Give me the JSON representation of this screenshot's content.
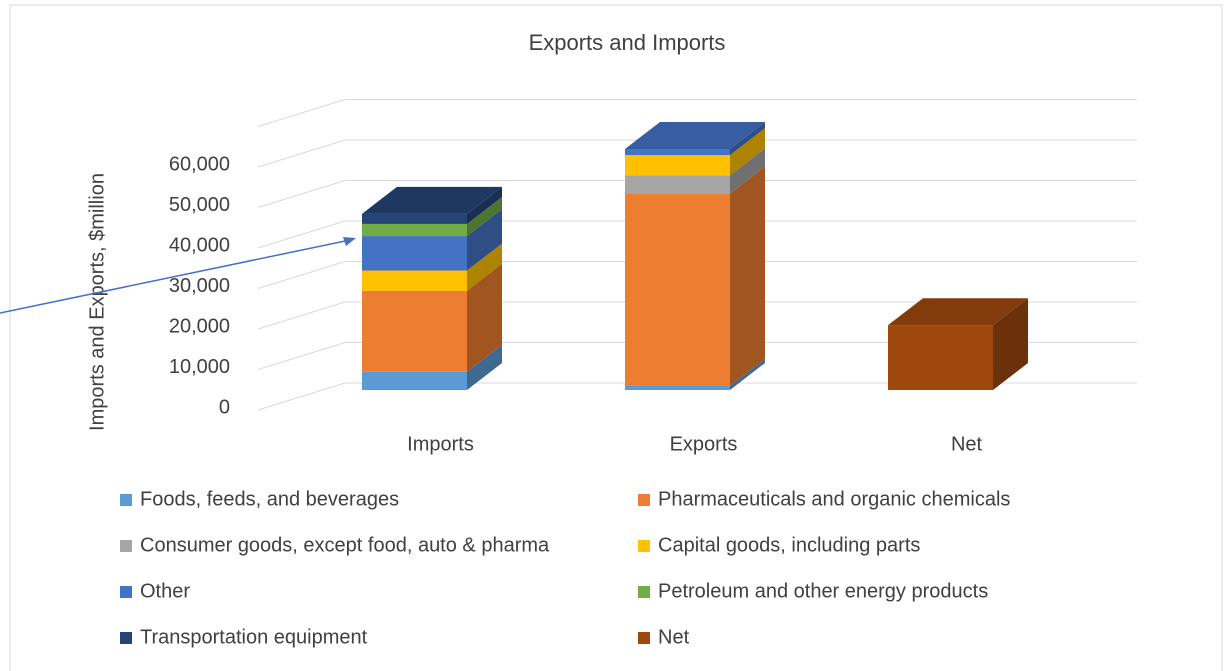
{
  "chart_data": {
    "type": "bar3d_stacked",
    "title": "Exports and Imports",
    "ylabel": "Imports and Exports, $million",
    "categories": [
      "Imports",
      "Exports",
      "Net"
    ],
    "series": [
      {
        "name": "Foods, feeds, and beverages",
        "color": "#5b9bd5",
        "values": [
          4500,
          1000,
          null
        ]
      },
      {
        "name": "Pharmaceuticals and organic chemicals",
        "color": "#ed7d31",
        "values": [
          20000,
          47500,
          null
        ]
      },
      {
        "name": "Consumer goods, except food, auto & pharma",
        "color": "#a5a5a5",
        "values": [
          null,
          4500,
          null
        ]
      },
      {
        "name": "Capital goods, including parts",
        "color": "#ffc000",
        "values": [
          5000,
          5000,
          null
        ]
      },
      {
        "name": "Other",
        "color": "#4472c4",
        "values": [
          8500,
          1500,
          null
        ]
      },
      {
        "name": "Petroleum and other energy products",
        "color": "#70ad47",
        "values": [
          3000,
          null,
          null
        ]
      },
      {
        "name": "Transportation equipment",
        "color": "#264478",
        "values": [
          2500,
          null,
          null
        ]
      },
      {
        "name": "Net",
        "color": "#9e480e",
        "values": [
          null,
          null,
          16000
        ]
      }
    ],
    "ylim": [
      0,
      70000
    ],
    "yticks": [
      0,
      {
        "value": 10000,
        "label": "10,000"
      },
      {
        "value": 20000,
        "label": "20,000"
      },
      {
        "value": 30000,
        "label": "30,000"
      },
      {
        "value": 40000,
        "label": "40,000"
      },
      {
        "value": 50000,
        "label": "50,000"
      },
      {
        "value": 60000,
        "label": "60,000"
      }
    ],
    "grid": true
  }
}
